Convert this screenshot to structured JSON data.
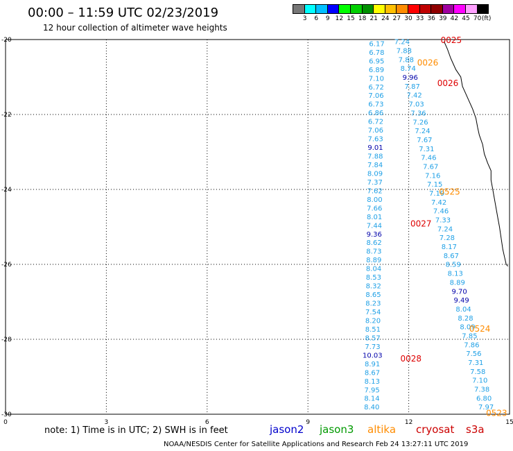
{
  "header": {
    "title": "00:00 – 11:59 UTC 02/23/2019",
    "subtitle": "12 hour collection of altimeter wave heights"
  },
  "color_scale": {
    "colors": [
      "#777777",
      "#00ffff",
      "#00bfff",
      "#0000ff",
      "#00ff00",
      "#00d000",
      "#009000",
      "#ffff00",
      "#ffc000",
      "#ff8c00",
      "#ff0000",
      "#c00000",
      "#900000",
      "#a000a0",
      "#ff00ff",
      "#ffa0ff",
      "#000000"
    ],
    "ticks": [
      "3",
      "6",
      "9",
      "12",
      "15",
      "18",
      "21",
      "24",
      "27",
      "30",
      "33",
      "36",
      "39",
      "42",
      "45",
      "70"
    ],
    "unit": "(ft)"
  },
  "footer": {
    "note": "note:  1) Time is in UTC;  2) SWH is in feet",
    "credit": "NOAA/NESDIS Center for Satellite Applications and Research     Feb 24 13:27:11 UTC 2019"
  },
  "satellites": [
    {
      "name": "jason2",
      "color": "#0000cc"
    },
    {
      "name": "jason3",
      "color": "#009900"
    },
    {
      "name": "altika",
      "color": "#ff8c00"
    },
    {
      "name": "cryosat",
      "color": "#cc0000"
    },
    {
      "name": "s3a",
      "color": "#cc0000"
    }
  ],
  "chart_data": {
    "type": "scatter",
    "xlim": [
      0,
      15
    ],
    "ylim": [
      -30,
      -20
    ],
    "x_ticks": [
      "0",
      "3",
      "6",
      "9",
      "12",
      "15"
    ],
    "y_ticks": [
      "-20",
      "-22",
      "-24",
      "-26",
      "-28",
      "-30"
    ],
    "grid": true,
    "colors": {
      "light": "#1fa0e6",
      "dark": "#0000aa",
      "cryosat": "#dd0000",
      "altika": "#ff8c00"
    },
    "tracks": [
      {
        "name": "track1",
        "lon_start": 11.05,
        "lat_start": -20.1,
        "lon_end": 10.9,
        "lat_end": -29.8,
        "values": [
          "6.17",
          "6.78",
          "6.95",
          "6.89",
          "7.10",
          "6.72",
          "7.06",
          "6.73",
          "6.86",
          "6.72",
          "7.06",
          "7.63",
          "9.01",
          "7.88",
          "7.84",
          "8.09",
          "7.37",
          "7.62",
          "8.00",
          "7.66",
          "8.01",
          "7.44",
          "9.36",
          "8.62",
          "8.73",
          "8.89",
          "8.04",
          "8.53",
          "8.32",
          "8.65",
          "8.23",
          "7.54",
          "8.20",
          "8.51",
          "8.57",
          "7.73",
          "10.03",
          "8.91",
          "8.67",
          "8.13",
          "7.95",
          "8.14",
          "8.40"
        ],
        "dark": [
          "9.01",
          "9.36",
          "10.03"
        ]
      },
      {
        "name": "track2",
        "lon_start": 11.8,
        "lat_start": -20.05,
        "lon_end": 14.3,
        "lat_end": -29.8,
        "values": [
          "7.24",
          "7.88",
          "7.88",
          "8.74",
          "9.96",
          "7.87",
          "7.42",
          "7.03",
          "7.36",
          "7.26",
          "7.24",
          "7.67",
          "7.31",
          "7.46",
          "7.67",
          "7.16",
          "7.15",
          "7.19",
          "7.42",
          "7.46",
          "7.33",
          "7.24",
          "7.28",
          "8.17",
          "8.67",
          "8.59",
          "8.13",
          "8.89",
          "9.70",
          "9.49",
          "8.04",
          "8.28",
          "8.09",
          "7.85",
          "7.86",
          "7.56",
          "7.31",
          "7.58",
          "7.10",
          "7.38",
          "6.80",
          "7.97"
        ],
        "dark": [
          "9.96",
          "9.70",
          "9.49"
        ]
      }
    ],
    "time_labels": [
      {
        "text": "0025",
        "lon": 12.95,
        "lat": -20.0,
        "kind": "cryosat"
      },
      {
        "text": "0026",
        "lon": 12.25,
        "lat": -20.6,
        "kind": "altika"
      },
      {
        "text": "0026",
        "lon": 12.85,
        "lat": -21.15,
        "kind": "cryosat"
      },
      {
        "text": "0525",
        "lon": 12.9,
        "lat": -24.05,
        "kind": "altika"
      },
      {
        "text": "0027",
        "lon": 12.05,
        "lat": -24.9,
        "kind": "cryosat"
      },
      {
        "text": "0524",
        "lon": 13.8,
        "lat": -27.7,
        "kind": "altika"
      },
      {
        "text": "0028",
        "lon": 11.75,
        "lat": -28.5,
        "kind": "cryosat"
      },
      {
        "text": "0523",
        "lon": 14.3,
        "lat": -29.95,
        "kind": "altika"
      }
    ],
    "coast": [
      [
        13.05,
        -20.05
      ],
      [
        13.15,
        -20.25
      ],
      [
        13.25,
        -20.5
      ],
      [
        13.4,
        -20.8
      ],
      [
        13.55,
        -21.0
      ],
      [
        13.6,
        -21.25
      ],
      [
        13.7,
        -21.45
      ],
      [
        13.8,
        -21.65
      ],
      [
        13.9,
        -21.85
      ],
      [
        14.0,
        -22.1
      ],
      [
        14.05,
        -22.35
      ],
      [
        14.1,
        -22.55
      ],
      [
        14.2,
        -22.8
      ],
      [
        14.25,
        -23.05
      ],
      [
        14.35,
        -23.3
      ],
      [
        14.45,
        -23.5
      ],
      [
        14.45,
        -23.75
      ],
      [
        14.5,
        -24.0
      ],
      [
        14.55,
        -24.25
      ],
      [
        14.6,
        -24.5
      ],
      [
        14.65,
        -24.75
      ],
      [
        14.7,
        -25.0
      ],
      [
        14.75,
        -25.3
      ],
      [
        14.8,
        -25.6
      ],
      [
        14.85,
        -25.8
      ],
      [
        14.9,
        -26.0
      ],
      [
        14.95,
        -26.05
      ]
    ]
  }
}
